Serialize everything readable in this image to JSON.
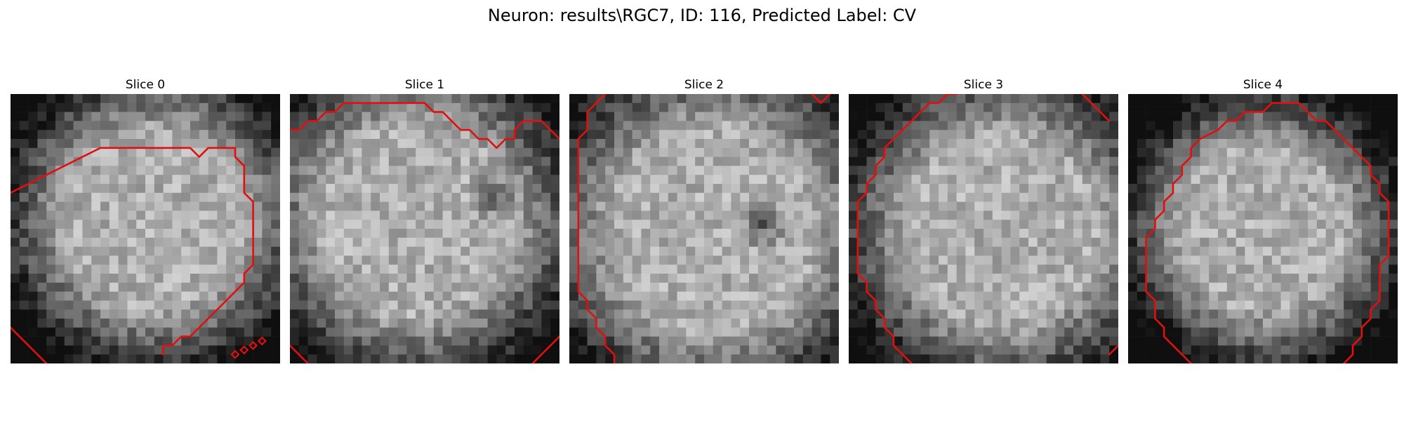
{
  "figure": {
    "title": "Neuron: results\\RGC7, ID: 116, Predicted Label: CV"
  },
  "colors": {
    "contour": "#e01010",
    "background": "#ffffff"
  },
  "image_data": {
    "grid_size": 30,
    "colormap": "gray"
  },
  "slices": [
    {
      "title": "Slice 0",
      "contour_points": [
        [
          0,
          11
        ],
        [
          2,
          10
        ],
        [
          4,
          9
        ],
        [
          6,
          8
        ],
        [
          8,
          7
        ],
        [
          10,
          6
        ],
        [
          20,
          6
        ],
        [
          21,
          7
        ],
        [
          22,
          6
        ],
        [
          25,
          6
        ],
        [
          25,
          7
        ],
        [
          26,
          8
        ],
        [
          26,
          9
        ],
        [
          26,
          10
        ],
        [
          26,
          11
        ],
        [
          27,
          12
        ],
        [
          27,
          13
        ],
        [
          27,
          14
        ],
        [
          27,
          15
        ],
        [
          27,
          16
        ],
        [
          27,
          17
        ],
        [
          27,
          18
        ],
        [
          27,
          19
        ],
        [
          26,
          20
        ],
        [
          26,
          21
        ],
        [
          25,
          22
        ],
        [
          24,
          23
        ],
        [
          23,
          24
        ],
        [
          22,
          25
        ],
        [
          21,
          26
        ],
        [
          20,
          27
        ],
        [
          19,
          27
        ],
        [
          18,
          28
        ],
        [
          17,
          28
        ],
        [
          17,
          29
        ]
      ],
      "extra_segments": [
        [
          [
            0,
            26
          ],
          [
            4,
            30
          ]
        ]
      ],
      "markers": [
        [
          25,
          29
        ],
        [
          26,
          28.5
        ],
        [
          27,
          28
        ],
        [
          28,
          27.5
        ]
      ]
    },
    {
      "title": "Slice 1",
      "contour_points": [
        [
          0,
          4
        ],
        [
          1,
          4
        ],
        [
          2,
          3
        ],
        [
          3,
          3
        ],
        [
          4,
          2
        ],
        [
          5,
          2
        ],
        [
          6,
          1
        ],
        [
          15,
          1
        ],
        [
          16,
          2
        ],
        [
          17,
          2
        ],
        [
          18,
          3
        ],
        [
          19,
          4
        ],
        [
          20,
          4
        ],
        [
          21,
          5
        ],
        [
          22,
          5
        ],
        [
          23,
          6
        ],
        [
          24,
          5
        ],
        [
          25,
          5
        ],
        [
          25,
          4
        ],
        [
          26,
          3
        ],
        [
          28,
          3
        ],
        [
          29,
          4
        ],
        [
          30,
          5
        ]
      ],
      "extra_segments": [
        [
          [
            0,
            28
          ],
          [
            2,
            30
          ]
        ],
        [
          [
            27,
            30
          ],
          [
            30,
            27
          ]
        ]
      ],
      "markers": []
    },
    {
      "title": "Slice 2",
      "contour_points": [
        [
          4,
          0
        ],
        [
          3,
          1
        ],
        [
          2,
          2
        ],
        [
          2,
          3
        ],
        [
          2,
          4
        ],
        [
          1,
          5
        ],
        [
          1,
          6
        ],
        [
          1,
          7
        ],
        [
          1,
          8
        ],
        [
          1,
          9
        ],
        [
          1,
          10
        ],
        [
          1,
          11
        ],
        [
          1,
          12
        ],
        [
          1,
          13
        ],
        [
          1,
          14
        ],
        [
          1,
          15
        ],
        [
          1,
          16
        ],
        [
          1,
          17
        ],
        [
          1,
          18
        ],
        [
          1,
          19
        ],
        [
          1,
          20
        ],
        [
          1,
          21
        ],
        [
          1,
          22
        ],
        [
          2,
          23
        ],
        [
          2,
          24
        ],
        [
          3,
          25
        ],
        [
          3,
          26
        ],
        [
          4,
          27
        ],
        [
          4,
          28
        ],
        [
          5,
          29
        ],
        [
          5,
          30
        ]
      ],
      "extra_segments": [
        [
          [
            27,
            0
          ],
          [
            28,
            1
          ],
          [
            29,
            0
          ]
        ]
      ],
      "markers": []
    },
    {
      "title": "Slice 3",
      "contour_points": [
        [
          12,
          0
        ],
        [
          11,
          0
        ],
        [
          10,
          1
        ],
        [
          9,
          1
        ],
        [
          8,
          2
        ],
        [
          7,
          3
        ],
        [
          6,
          4
        ],
        [
          5,
          5
        ],
        [
          4,
          6
        ],
        [
          4,
          7
        ],
        [
          3,
          8
        ],
        [
          3,
          9
        ],
        [
          2,
          10
        ],
        [
          2,
          11
        ],
        [
          1,
          12
        ],
        [
          1,
          13
        ],
        [
          1,
          14
        ],
        [
          1,
          15
        ],
        [
          1,
          16
        ],
        [
          1,
          17
        ],
        [
          1,
          18
        ],
        [
          1,
          19
        ],
        [
          1,
          20
        ],
        [
          2,
          21
        ],
        [
          2,
          22
        ],
        [
          3,
          23
        ],
        [
          3,
          24
        ],
        [
          4,
          25
        ],
        [
          4,
          26
        ],
        [
          5,
          27
        ],
        [
          5,
          28
        ],
        [
          6,
          29
        ],
        [
          7,
          30
        ]
      ],
      "extra_segments": [
        [
          [
            26,
            0
          ],
          [
            29,
            3
          ]
        ],
        [
          [
            29,
            29
          ],
          [
            30,
            28
          ]
        ]
      ],
      "markers": []
    },
    {
      "title": "Slice 4",
      "contour_points": [
        [
          7,
          30
        ],
        [
          6,
          29
        ],
        [
          5,
          28
        ],
        [
          4,
          27
        ],
        [
          4,
          26
        ],
        [
          3,
          25
        ],
        [
          3,
          24
        ],
        [
          3,
          23
        ],
        [
          2,
          22
        ],
        [
          2,
          21
        ],
        [
          2,
          20
        ],
        [
          2,
          19
        ],
        [
          2,
          18
        ],
        [
          2,
          17
        ],
        [
          2,
          16
        ],
        [
          3,
          15
        ],
        [
          3,
          14
        ],
        [
          4,
          13
        ],
        [
          4,
          12
        ],
        [
          5,
          11
        ],
        [
          5,
          10
        ],
        [
          6,
          9
        ],
        [
          6,
          8
        ],
        [
          7,
          7
        ],
        [
          7,
          6
        ],
        [
          8,
          5
        ],
        [
          10,
          4
        ],
        [
          11,
          3
        ],
        [
          12,
          3
        ],
        [
          13,
          2
        ],
        [
          15,
          2
        ],
        [
          16,
          1
        ],
        [
          19,
          1
        ],
        [
          20,
          2
        ],
        [
          21,
          3
        ],
        [
          22,
          3
        ],
        [
          23,
          4
        ],
        [
          24,
          5
        ],
        [
          25,
          6
        ],
        [
          26,
          7
        ],
        [
          27,
          8
        ],
        [
          27,
          9
        ],
        [
          28,
          10
        ],
        [
          28,
          11
        ],
        [
          29,
          12
        ],
        [
          29,
          13
        ],
        [
          29,
          14
        ],
        [
          29,
          15
        ],
        [
          29,
          16
        ],
        [
          29,
          17
        ],
        [
          29,
          18
        ],
        [
          28,
          19
        ],
        [
          28,
          20
        ],
        [
          28,
          21
        ],
        [
          28,
          22
        ],
        [
          28,
          23
        ],
        [
          27,
          24
        ],
        [
          27,
          25
        ],
        [
          26,
          26
        ],
        [
          26,
          27
        ],
        [
          25,
          28
        ],
        [
          25,
          29
        ],
        [
          24,
          30
        ]
      ],
      "extra_segments": [],
      "markers": []
    }
  ]
}
